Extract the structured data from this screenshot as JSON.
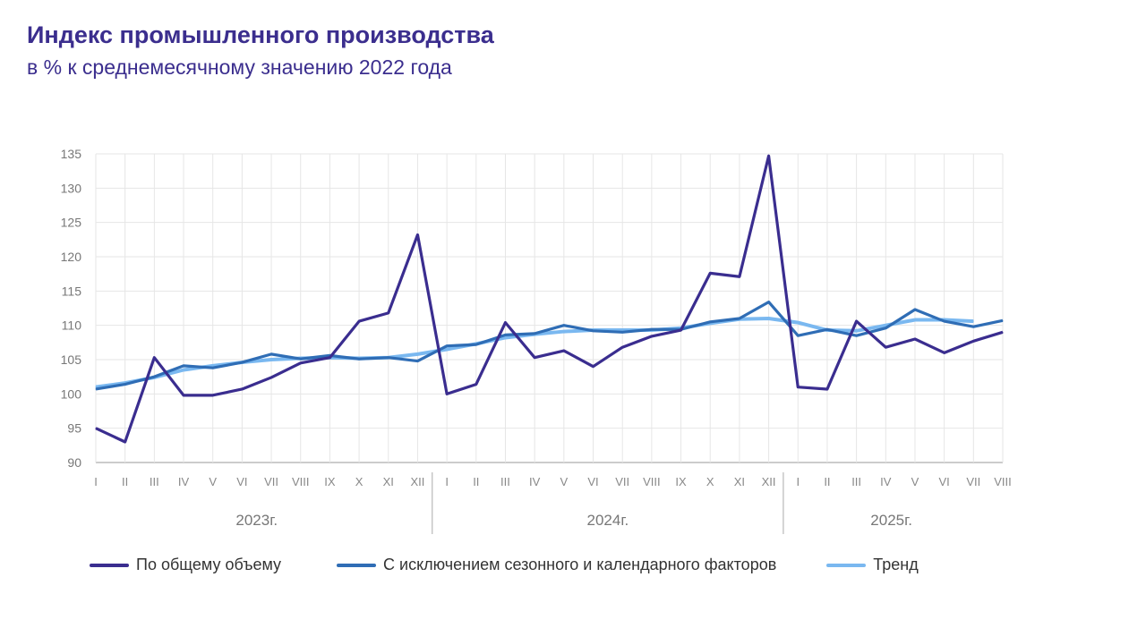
{
  "chart_data": {
    "type": "line",
    "title": "Индекс промышленного производства",
    "subtitle": "в % к среднемесячному значению 2022 года",
    "ylim": [
      90,
      135
    ],
    "yticks": [
      90,
      95,
      100,
      105,
      110,
      115,
      120,
      125,
      130,
      135
    ],
    "grid": true,
    "legend_position": "bottom",
    "years": [
      {
        "label": "2023г.",
        "months": [
          "I",
          "II",
          "III",
          "IV",
          "V",
          "VI",
          "VII",
          "VIII",
          "IX",
          "X",
          "XI",
          "XII"
        ]
      },
      {
        "label": "2024г.",
        "months": [
          "I",
          "II",
          "III",
          "IV",
          "V",
          "VI",
          "VII",
          "VIII",
          "IX",
          "X",
          "XI",
          "XII"
        ]
      },
      {
        "label": "2025г.",
        "months": [
          "I",
          "II",
          "III",
          "IV",
          "V",
          "VI",
          "VII",
          "VIII"
        ]
      }
    ],
    "series": [
      {
        "name": "По общему объему",
        "color": "#3a2d8f",
        "values": [
          95,
          93,
          105.3,
          99.8,
          99.8,
          100.7,
          102.4,
          104.5,
          105.3,
          110.6,
          111.8,
          123.2,
          100,
          101.4,
          110.4,
          105.3,
          106.3,
          104,
          106.8,
          108.4,
          109.3,
          117.6,
          117.1,
          134.7,
          101,
          100.7,
          110.6,
          106.8,
          108,
          106,
          107.7,
          109
        ]
      },
      {
        "name": "С исключением сезонного и календарного факторов",
        "color": "#2f6db5",
        "values": [
          100.7,
          101.4,
          102.5,
          104.1,
          103.8,
          104.6,
          105.8,
          105.1,
          105.6,
          105.1,
          105.3,
          104.8,
          107,
          107.2,
          108.6,
          108.8,
          110,
          109.2,
          109,
          109.4,
          109.4,
          110.5,
          111,
          113.4,
          108.5,
          109.4,
          108.5,
          109.6,
          112.3,
          110.6,
          109.8,
          110.7
        ]
      },
      {
        "name": "Тренд",
        "color": "#7ab8f0",
        "values": [
          101,
          101.6,
          102.4,
          103.5,
          104.1,
          104.6,
          105,
          105.2,
          105.3,
          105.2,
          105.3,
          105.8,
          106.5,
          107.3,
          108.2,
          108.7,
          109.1,
          109.3,
          109.3,
          109.3,
          109.6,
          110.3,
          110.9,
          111,
          110.4,
          109.3,
          109.2,
          110,
          110.8,
          110.8,
          110.6,
          null
        ]
      }
    ]
  }
}
